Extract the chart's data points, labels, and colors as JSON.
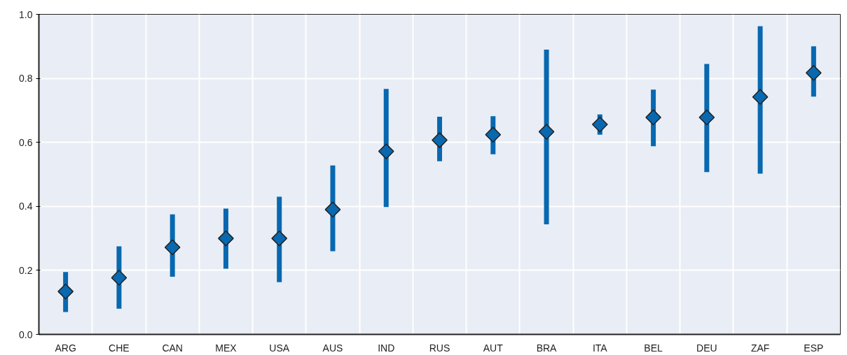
{
  "chart_data": {
    "type": "scatter",
    "marker": "diamond",
    "grid": true,
    "categories": [
      "ARG",
      "CHE",
      "CAN",
      "MEX",
      "USA",
      "AUS",
      "IND",
      "RUS",
      "AUT",
      "BRA",
      "ITA",
      "BEL",
      "DEU",
      "ZAF",
      "ESP"
    ],
    "series": [
      {
        "color": "#0868b0",
        "values": [
          0.134,
          0.177,
          0.272,
          0.3,
          0.3,
          0.39,
          0.572,
          0.607,
          0.624,
          0.633,
          0.656,
          0.678,
          0.678,
          0.742,
          0.817
        ],
        "errors": [
          [
            0.07,
            0.195
          ],
          [
            0.08,
            0.275
          ],
          [
            0.18,
            0.375
          ],
          [
            0.205,
            0.393
          ],
          [
            0.163,
            0.43
          ],
          [
            0.26,
            0.528
          ],
          [
            0.398,
            0.767
          ],
          [
            0.541,
            0.68
          ],
          [
            0.563,
            0.682
          ],
          [
            0.344,
            0.89
          ],
          [
            0.624,
            0.687
          ],
          [
            0.588,
            0.765
          ],
          [
            0.507,
            0.845
          ],
          [
            0.502,
            0.963
          ],
          [
            0.743,
            0.9
          ]
        ]
      }
    ],
    "ylim": [
      0,
      1.0
    ],
    "yticks": [
      {
        "value": 0,
        "label": "0.0"
      },
      0.2,
      0.4,
      0.6,
      0.8,
      {
        "value": 1,
        "label": "1.0"
      }
    ]
  }
}
